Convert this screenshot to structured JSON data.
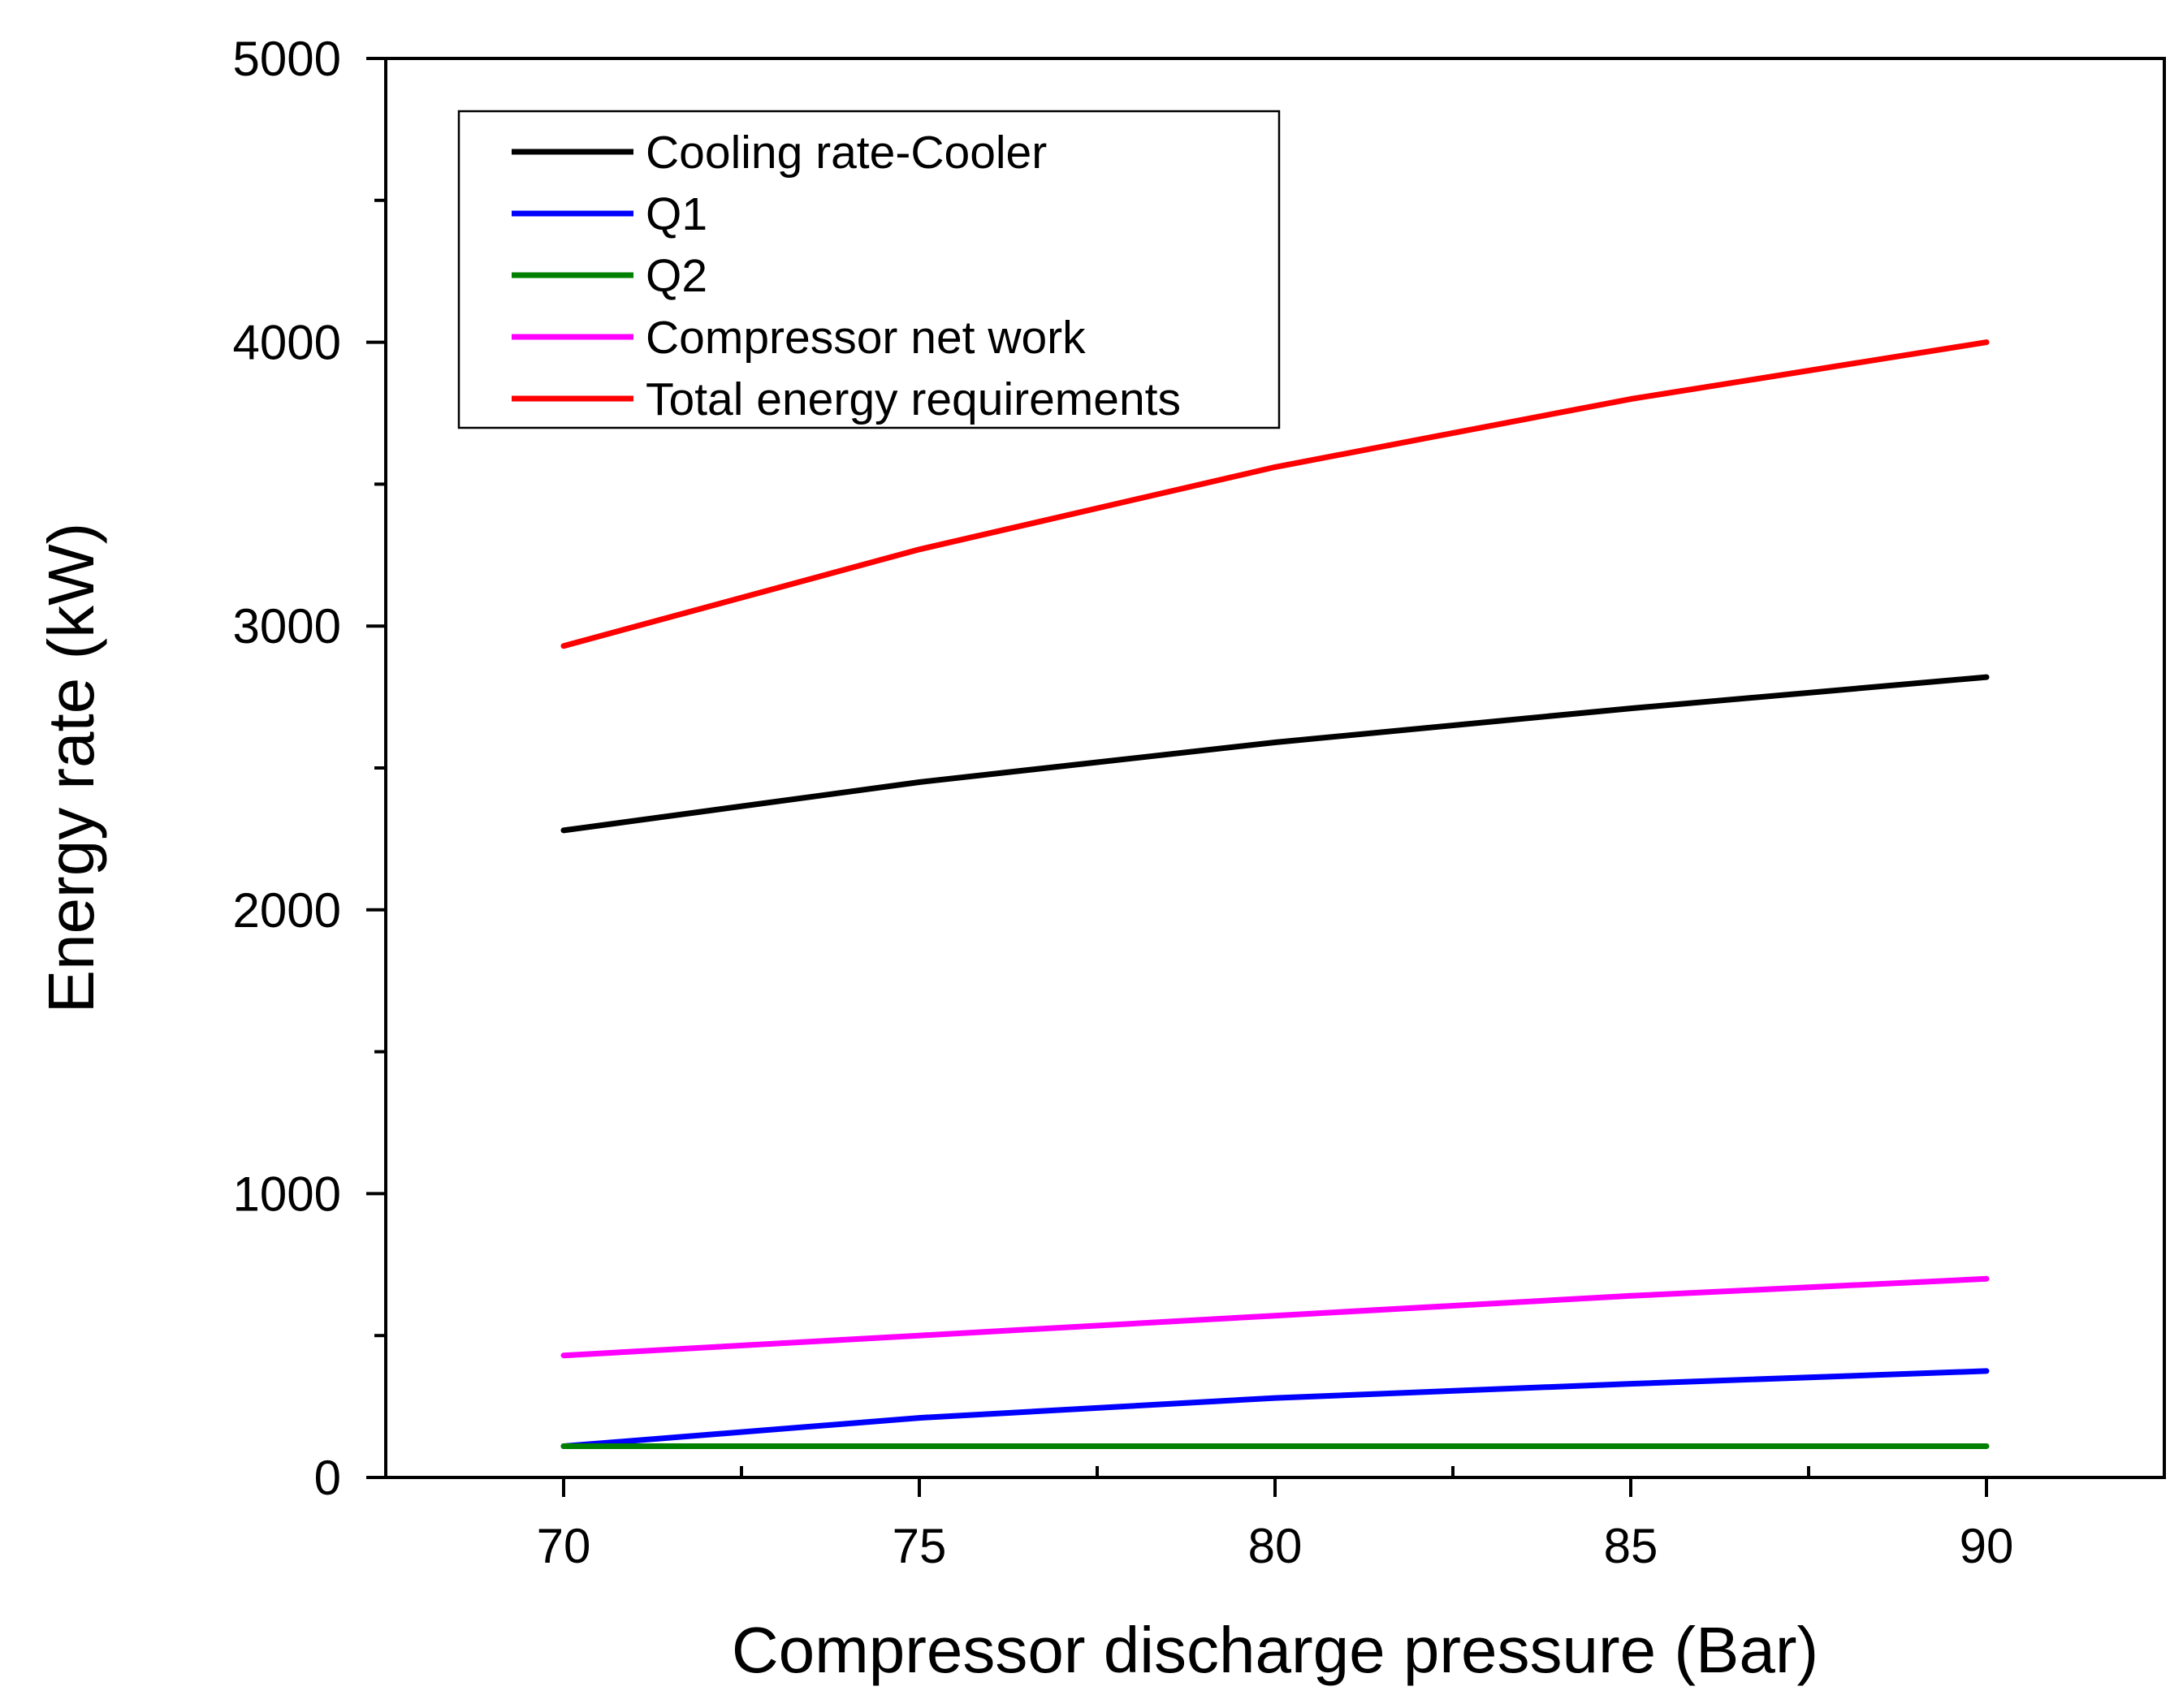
{
  "chart_data": {
    "type": "line",
    "title": "",
    "xlabel": "Compressor discharge pressure (Bar)",
    "ylabel": "Energy rate (kW)",
    "xlim": [
      67.5,
      92.5
    ],
    "ylim": [
      0,
      5000
    ],
    "xticks": [
      70,
      75,
      80,
      85,
      90
    ],
    "xtick_labels": [
      "70",
      "75",
      "80",
      "85",
      "90"
    ],
    "x_minor_ticks": [
      72.5,
      77.5,
      82.5,
      87.5
    ],
    "yticks": [
      0,
      1000,
      2000,
      3000,
      4000,
      5000
    ],
    "ytick_labels": [
      "0",
      "1000",
      "2000",
      "3000",
      "4000",
      "5000"
    ],
    "y_minor_ticks": [
      500,
      1500,
      2500,
      3500,
      4500
    ],
    "grid": false,
    "legend_position": "top-left",
    "x": [
      70,
      75,
      80,
      85,
      90
    ],
    "series": [
      {
        "name": "Cooling rate-Cooler",
        "color": "#000000",
        "values": [
          2280,
          2450,
          2590,
          2710,
          2820
        ]
      },
      {
        "name": "Q1",
        "color": "#0000ff",
        "values": [
          110,
          210,
          280,
          330,
          375
        ]
      },
      {
        "name": "Q2",
        "color": "#008000",
        "values": [
          110,
          110,
          110,
          110,
          110
        ]
      },
      {
        "name": "Compressor net work",
        "color": "#ff00ff",
        "values": [
          430,
          500,
          570,
          640,
          700
        ]
      },
      {
        "name": "Total energy requirements",
        "color": "#ff0000",
        "values": [
          2930,
          3270,
          3560,
          3800,
          4000
        ]
      }
    ]
  }
}
